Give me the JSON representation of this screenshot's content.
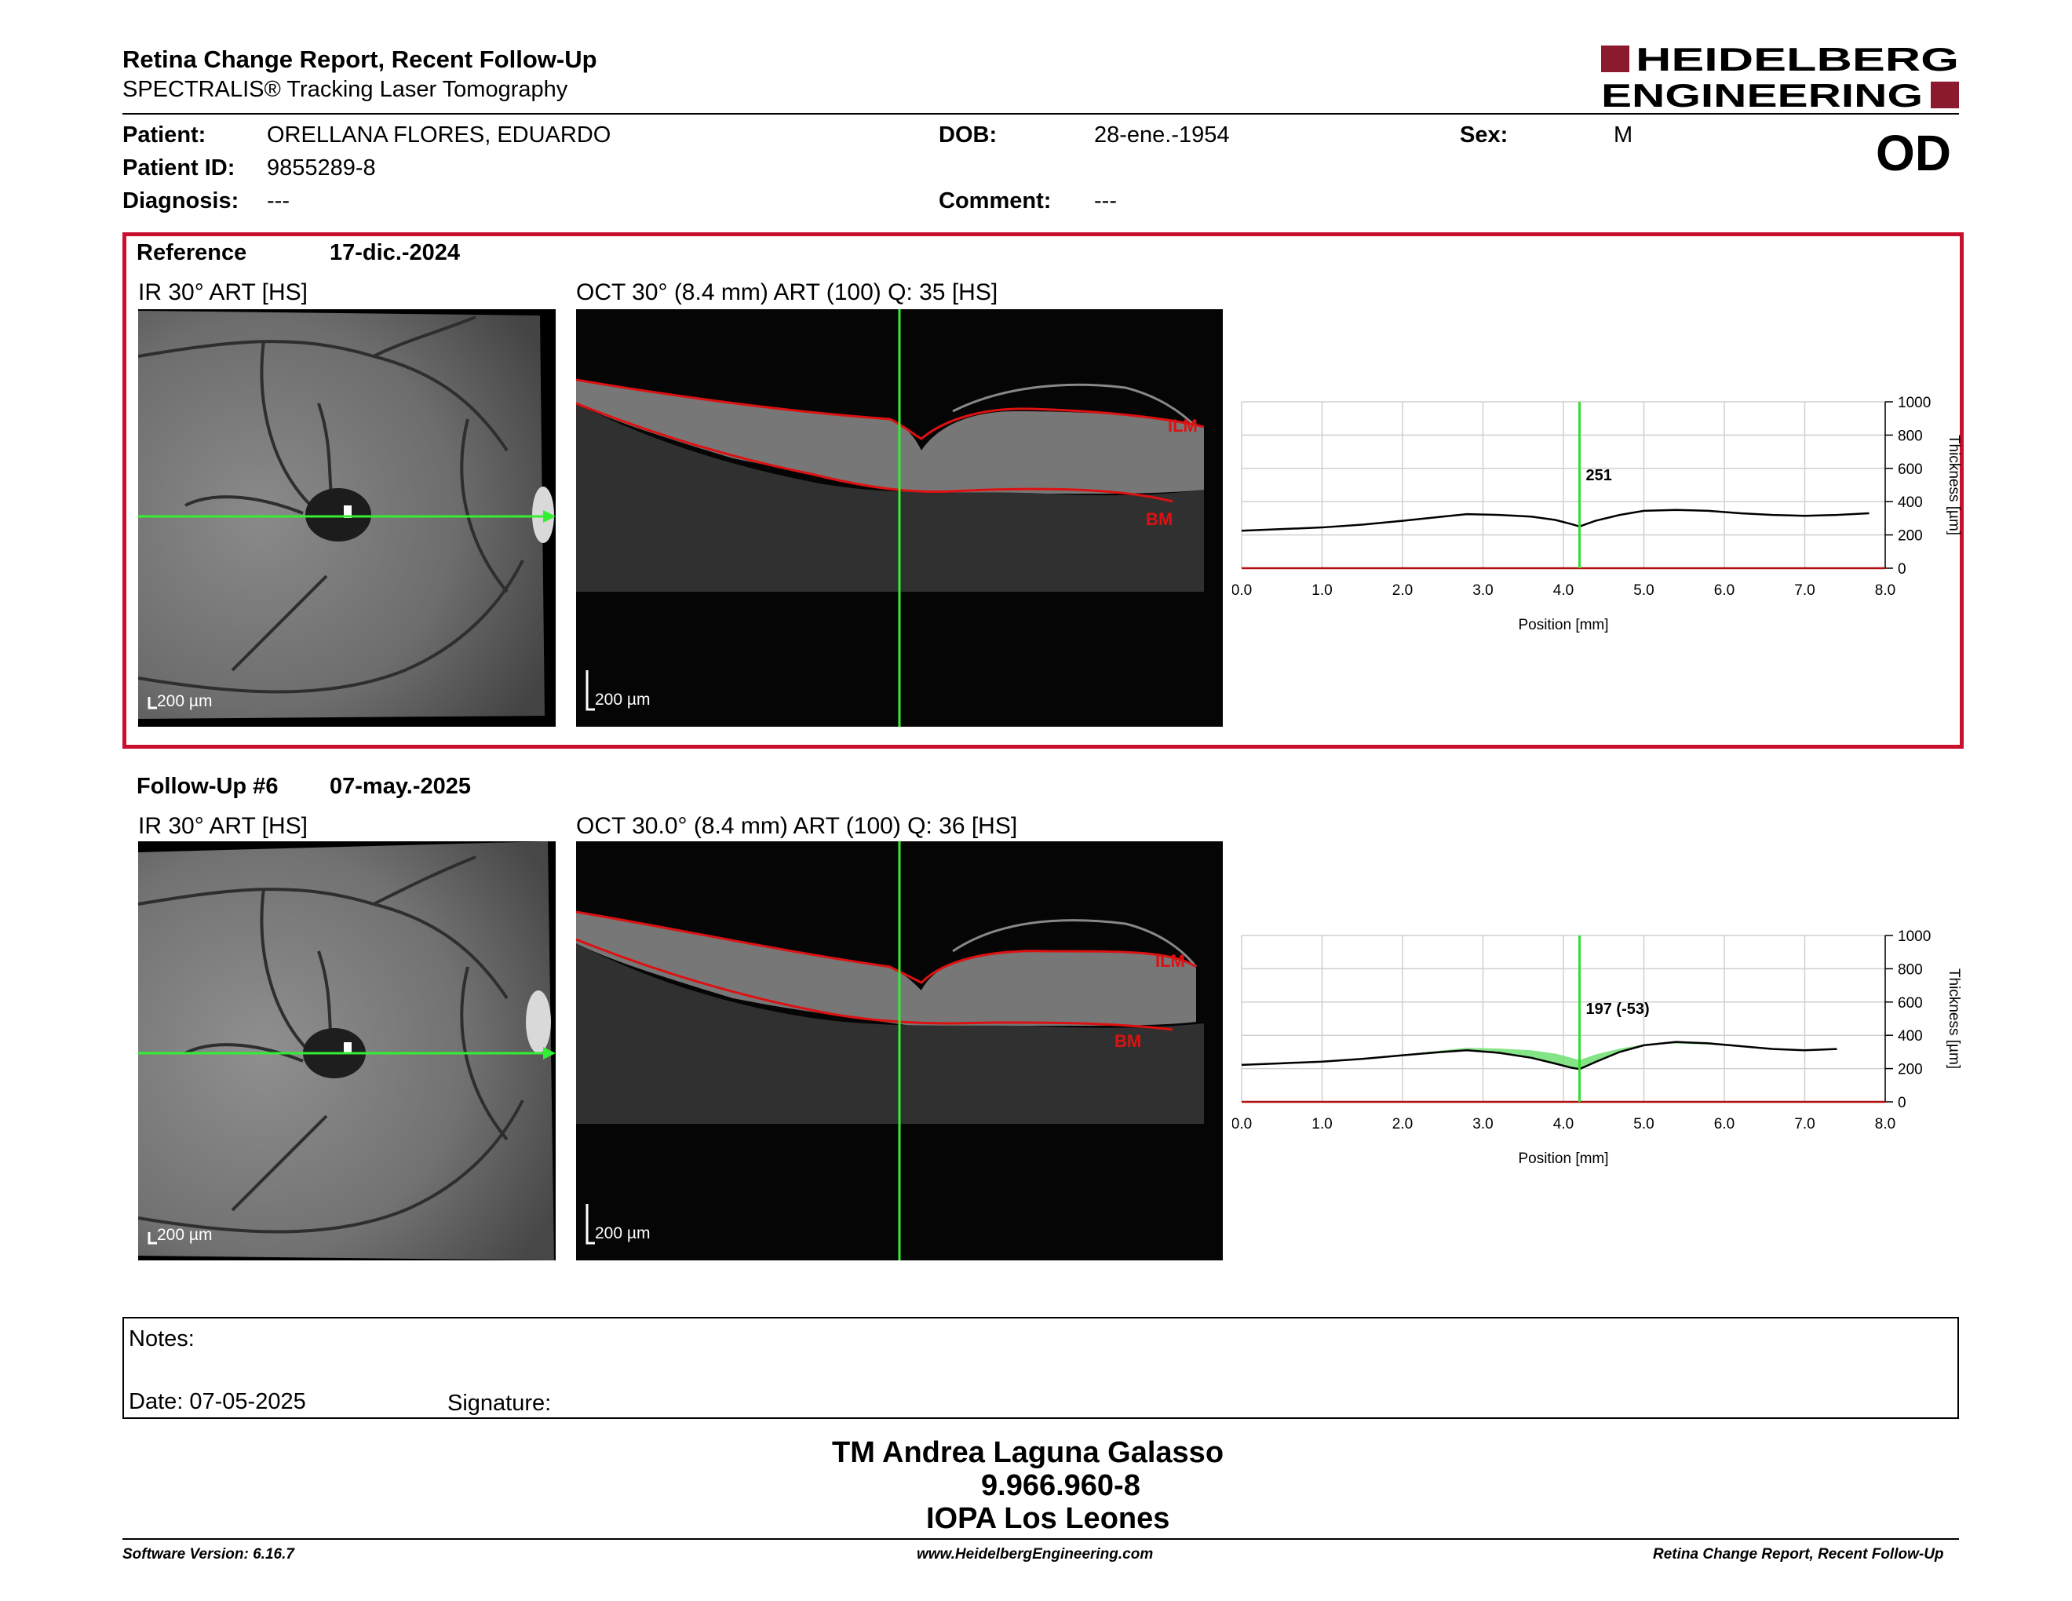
{
  "header": {
    "title": "Retina Change Report, Recent Follow-Up",
    "subtitle": "SPECTRALIS® Tracking Laser Tomography",
    "logo_line1": "HEIDELBERG",
    "logo_line2": "ENGINEERING",
    "brand_color": "#8b1a2e"
  },
  "patient": {
    "patient_label": "Patient:",
    "patient_value": "ORELLANA FLORES, EDUARDO",
    "id_label": "Patient ID:",
    "id_value": "9855289-8",
    "diagnosis_label": "Diagnosis:",
    "diagnosis_value": "---",
    "dob_label": "DOB:",
    "dob_value": "28-ene.-1954",
    "comment_label": "Comment:",
    "comment_value": "---",
    "sex_label": "Sex:",
    "sex_value": "M",
    "eye": "OD"
  },
  "reference": {
    "label": "Reference",
    "date": "17-dic.-2024",
    "ir_label": "IR 30° ART [HS]",
    "oct_label": "OCT 30° (8.4 mm) ART (100) Q: 35 [HS]",
    "scale_label": "200 µm",
    "oct_scale_label": "200 µm",
    "ilm": "ILM",
    "bm": "BM",
    "highlight_color": "#c8102e"
  },
  "followup": {
    "label": "Follow-Up #6",
    "date": "07-may.-2025",
    "ir_label": "IR 30° ART [HS]",
    "oct_label": "OCT 30.0° (8.4 mm) ART (100) Q: 36 [HS]",
    "scale_label": "200 µm",
    "oct_scale_label": "200 µm",
    "ilm": "ILM",
    "bm": "BM"
  },
  "chart_data": [
    {
      "type": "line",
      "xlabel": "Position [mm]",
      "ylabel": "Thickness [µm]",
      "xlim": [
        0,
        8.0
      ],
      "ylim": [
        0,
        1000
      ],
      "xticks": [
        "0.0",
        "1.0",
        "2.0",
        "3.0",
        "4.0",
        "5.0",
        "6.0",
        "7.0",
        "8.0"
      ],
      "yticks": [
        "0",
        "200",
        "400",
        "600",
        "800",
        "1000"
      ],
      "cursor_x": 4.2,
      "cursor_label": "251",
      "series": [
        {
          "values_x": [
            0.0,
            0.5,
            1.0,
            1.5,
            2.0,
            2.5,
            2.8,
            3.2,
            3.6,
            3.9,
            4.1,
            4.2,
            4.4,
            4.7,
            5.0,
            5.4,
            5.8,
            6.2,
            6.6,
            7.0,
            7.4,
            7.8
          ],
          "values_y": [
            225,
            235,
            245,
            262,
            285,
            310,
            325,
            320,
            310,
            290,
            265,
            251,
            285,
            320,
            345,
            350,
            345,
            330,
            320,
            315,
            320,
            330
          ]
        }
      ],
      "grid": true,
      "line_color": "#000000",
      "cursor_color": "#33dd33"
    },
    {
      "type": "area",
      "xlabel": "Position [mm]",
      "ylabel": "Thickness [µm]",
      "xlim": [
        0,
        8.0
      ],
      "ylim": [
        0,
        1000
      ],
      "xticks": [
        "0.0",
        "1.0",
        "2.0",
        "3.0",
        "4.0",
        "5.0",
        "6.0",
        "7.0",
        "8.0"
      ],
      "yticks": [
        "0",
        "200",
        "400",
        "600",
        "800",
        "1000"
      ],
      "cursor_x": 4.2,
      "cursor_label": "197 (-53)",
      "series": [
        {
          "name_hidden": "follow-up",
          "values_x": [
            0.0,
            0.5,
            1.0,
            1.5,
            2.0,
            2.5,
            2.8,
            3.2,
            3.6,
            3.9,
            4.1,
            4.2,
            4.4,
            4.7,
            5.0,
            5.4,
            5.8,
            6.2,
            6.6,
            7.0,
            7.4
          ],
          "values_y": [
            222,
            232,
            242,
            258,
            280,
            300,
            310,
            295,
            265,
            230,
            205,
            197,
            240,
            300,
            340,
            360,
            352,
            335,
            318,
            310,
            318
          ]
        },
        {
          "name_hidden": "reference",
          "values_x": [
            0.0,
            0.5,
            1.0,
            1.5,
            2.0,
            2.5,
            2.8,
            3.2,
            3.6,
            3.9,
            4.1,
            4.2,
            4.4,
            4.7,
            5.0,
            5.4,
            5.8,
            6.2,
            6.6,
            7.0,
            7.4
          ],
          "values_y": [
            225,
            235,
            245,
            262,
            285,
            310,
            325,
            320,
            310,
            290,
            265,
            251,
            285,
            320,
            345,
            350,
            345,
            330,
            320,
            315,
            320
          ]
        }
      ],
      "grid": true,
      "line_color": "#000000",
      "fill_color": "#66dd66",
      "cursor_color": "#33dd33"
    }
  ],
  "notes": {
    "label": "Notes:",
    "date_label": "Date: 07-05-2025",
    "signature_label": "Signature:"
  },
  "signature": {
    "name": "TM Andrea Laguna Galasso",
    "id": "9.966.960-8",
    "institution": "IOPA Los Leones"
  },
  "footer": {
    "version": "Software Version: 6.16.7",
    "website": "www.HeidelbergEngineering.com",
    "report": "Retina Change Report, Recent Follow-Up"
  }
}
